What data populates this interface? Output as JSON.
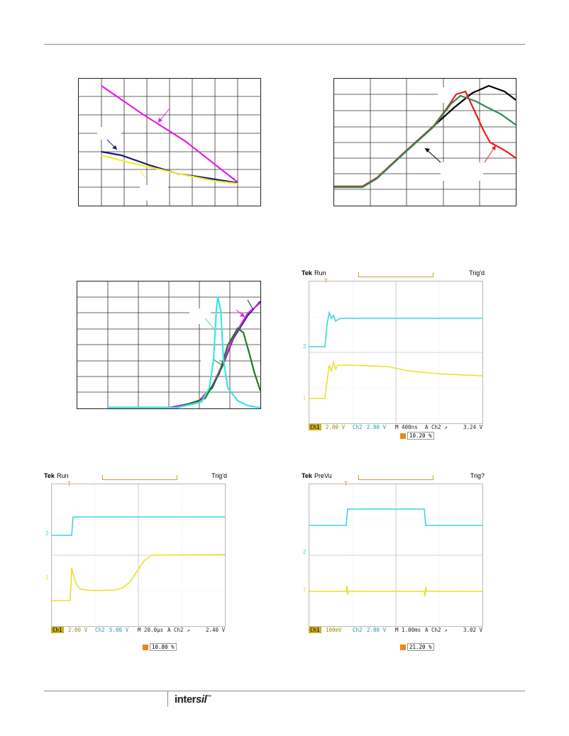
{
  "colors": {
    "magenta": "#e020e0",
    "navy": "#1a1a7a",
    "yellow": "#f0ef3c",
    "cyan": "#38e6e8",
    "red": "#ee1c1c",
    "green": "#2e8a5a",
    "darkgreen": "#1e7a1e",
    "black": "#000000",
    "scope_cyan": "#3ad6e0",
    "scope_yellow": "#e6e22a"
  },
  "scopes": [
    {
      "brand": "Tek",
      "state": "Run",
      "trig": "Trig'd",
      "footer": {
        "ch1": "Ch1",
        "ch1_val": "2.00 V",
        "ch2": "Ch2",
        "ch2_val": "2.00 V",
        "time": "M 400ns",
        "trig_src": "A  Ch2  ↗",
        "trig_lvl": "3.24 V"
      },
      "trig_pct": "10.20 %"
    },
    {
      "brand": "Tek",
      "state": "Run",
      "trig": "Trig'd",
      "footer": {
        "ch1": "Ch1",
        "ch1_val": "2.00 V",
        "ch2": "Ch2",
        "ch2_val": "5.00 V",
        "time": "M 20.0µs",
        "trig_src": "A  Ch2  ↗",
        "trig_lvl": "2.40 V"
      },
      "trig_pct": "10.80 %"
    },
    {
      "brand": "Tek",
      "state": "PreVu",
      "trig": "Trig?",
      "footer": {
        "ch1": "Ch1",
        "ch1_val": "100mV",
        "ch2": "Ch2",
        "ch2_val": "2.00 V",
        "time": "M 1.00ms",
        "trig_src": "A  Ch2  ↗",
        "trig_lvl": "3.02 V"
      },
      "trig_pct": "21.20 %"
    }
  ],
  "markers": {
    "ch1": "1",
    "ch2": "2",
    "trig": "T"
  },
  "logo": {
    "main": "inter",
    "accent": "sil",
    "mark": "™"
  }
}
